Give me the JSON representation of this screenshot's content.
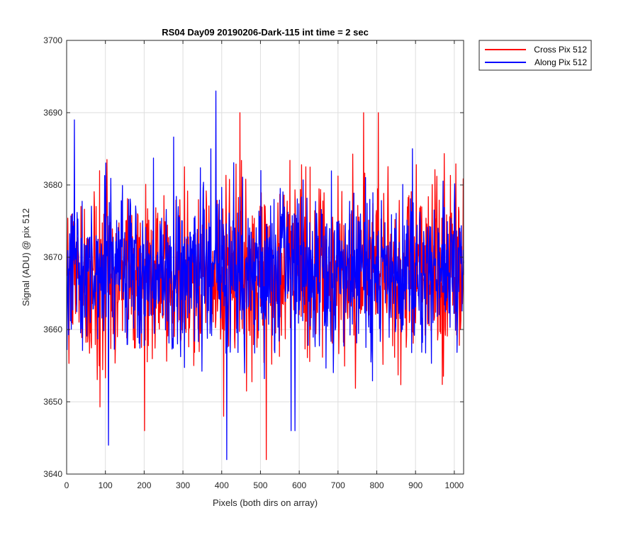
{
  "chart_data": {
    "type": "line",
    "title": "RS04 Day09 20190206-Dark-115 int time = 2 sec",
    "xlabel": "Pixels (both dirs on array)",
    "ylabel": "Signal (ADU) @ pix 512",
    "xlim": [
      0,
      1024
    ],
    "ylim": [
      3640,
      3700
    ],
    "xticks": [
      0,
      100,
      200,
      300,
      400,
      500,
      600,
      700,
      800,
      900,
      1000
    ],
    "yticks": [
      3640,
      3650,
      3660,
      3670,
      3680,
      3690,
      3700
    ],
    "grid": true,
    "legend_position": "outside-top-right",
    "num_points": 1024,
    "series": [
      {
        "name": "Cross Pix 512",
        "color": "#ff0000",
        "mean": 3668,
        "std": 6,
        "min": 3642,
        "max": 3690,
        "notable_points": [
          [
            200,
            3646
          ],
          [
            404,
            3648
          ],
          [
            446,
            3690
          ],
          [
            514,
            3642
          ],
          [
            765,
            3690
          ],
          [
            803,
            3690
          ]
        ]
      },
      {
        "name": "Along Pix 512",
        "color": "#0000ff",
        "mean": 3668,
        "std": 5.5,
        "min": 3642,
        "max": 3693,
        "notable_points": [
          [
            19,
            3689
          ],
          [
            107,
            3644
          ],
          [
            384,
            3693
          ],
          [
            412,
            3642
          ],
          [
            578,
            3646
          ],
          [
            588,
            3646
          ]
        ]
      }
    ]
  }
}
